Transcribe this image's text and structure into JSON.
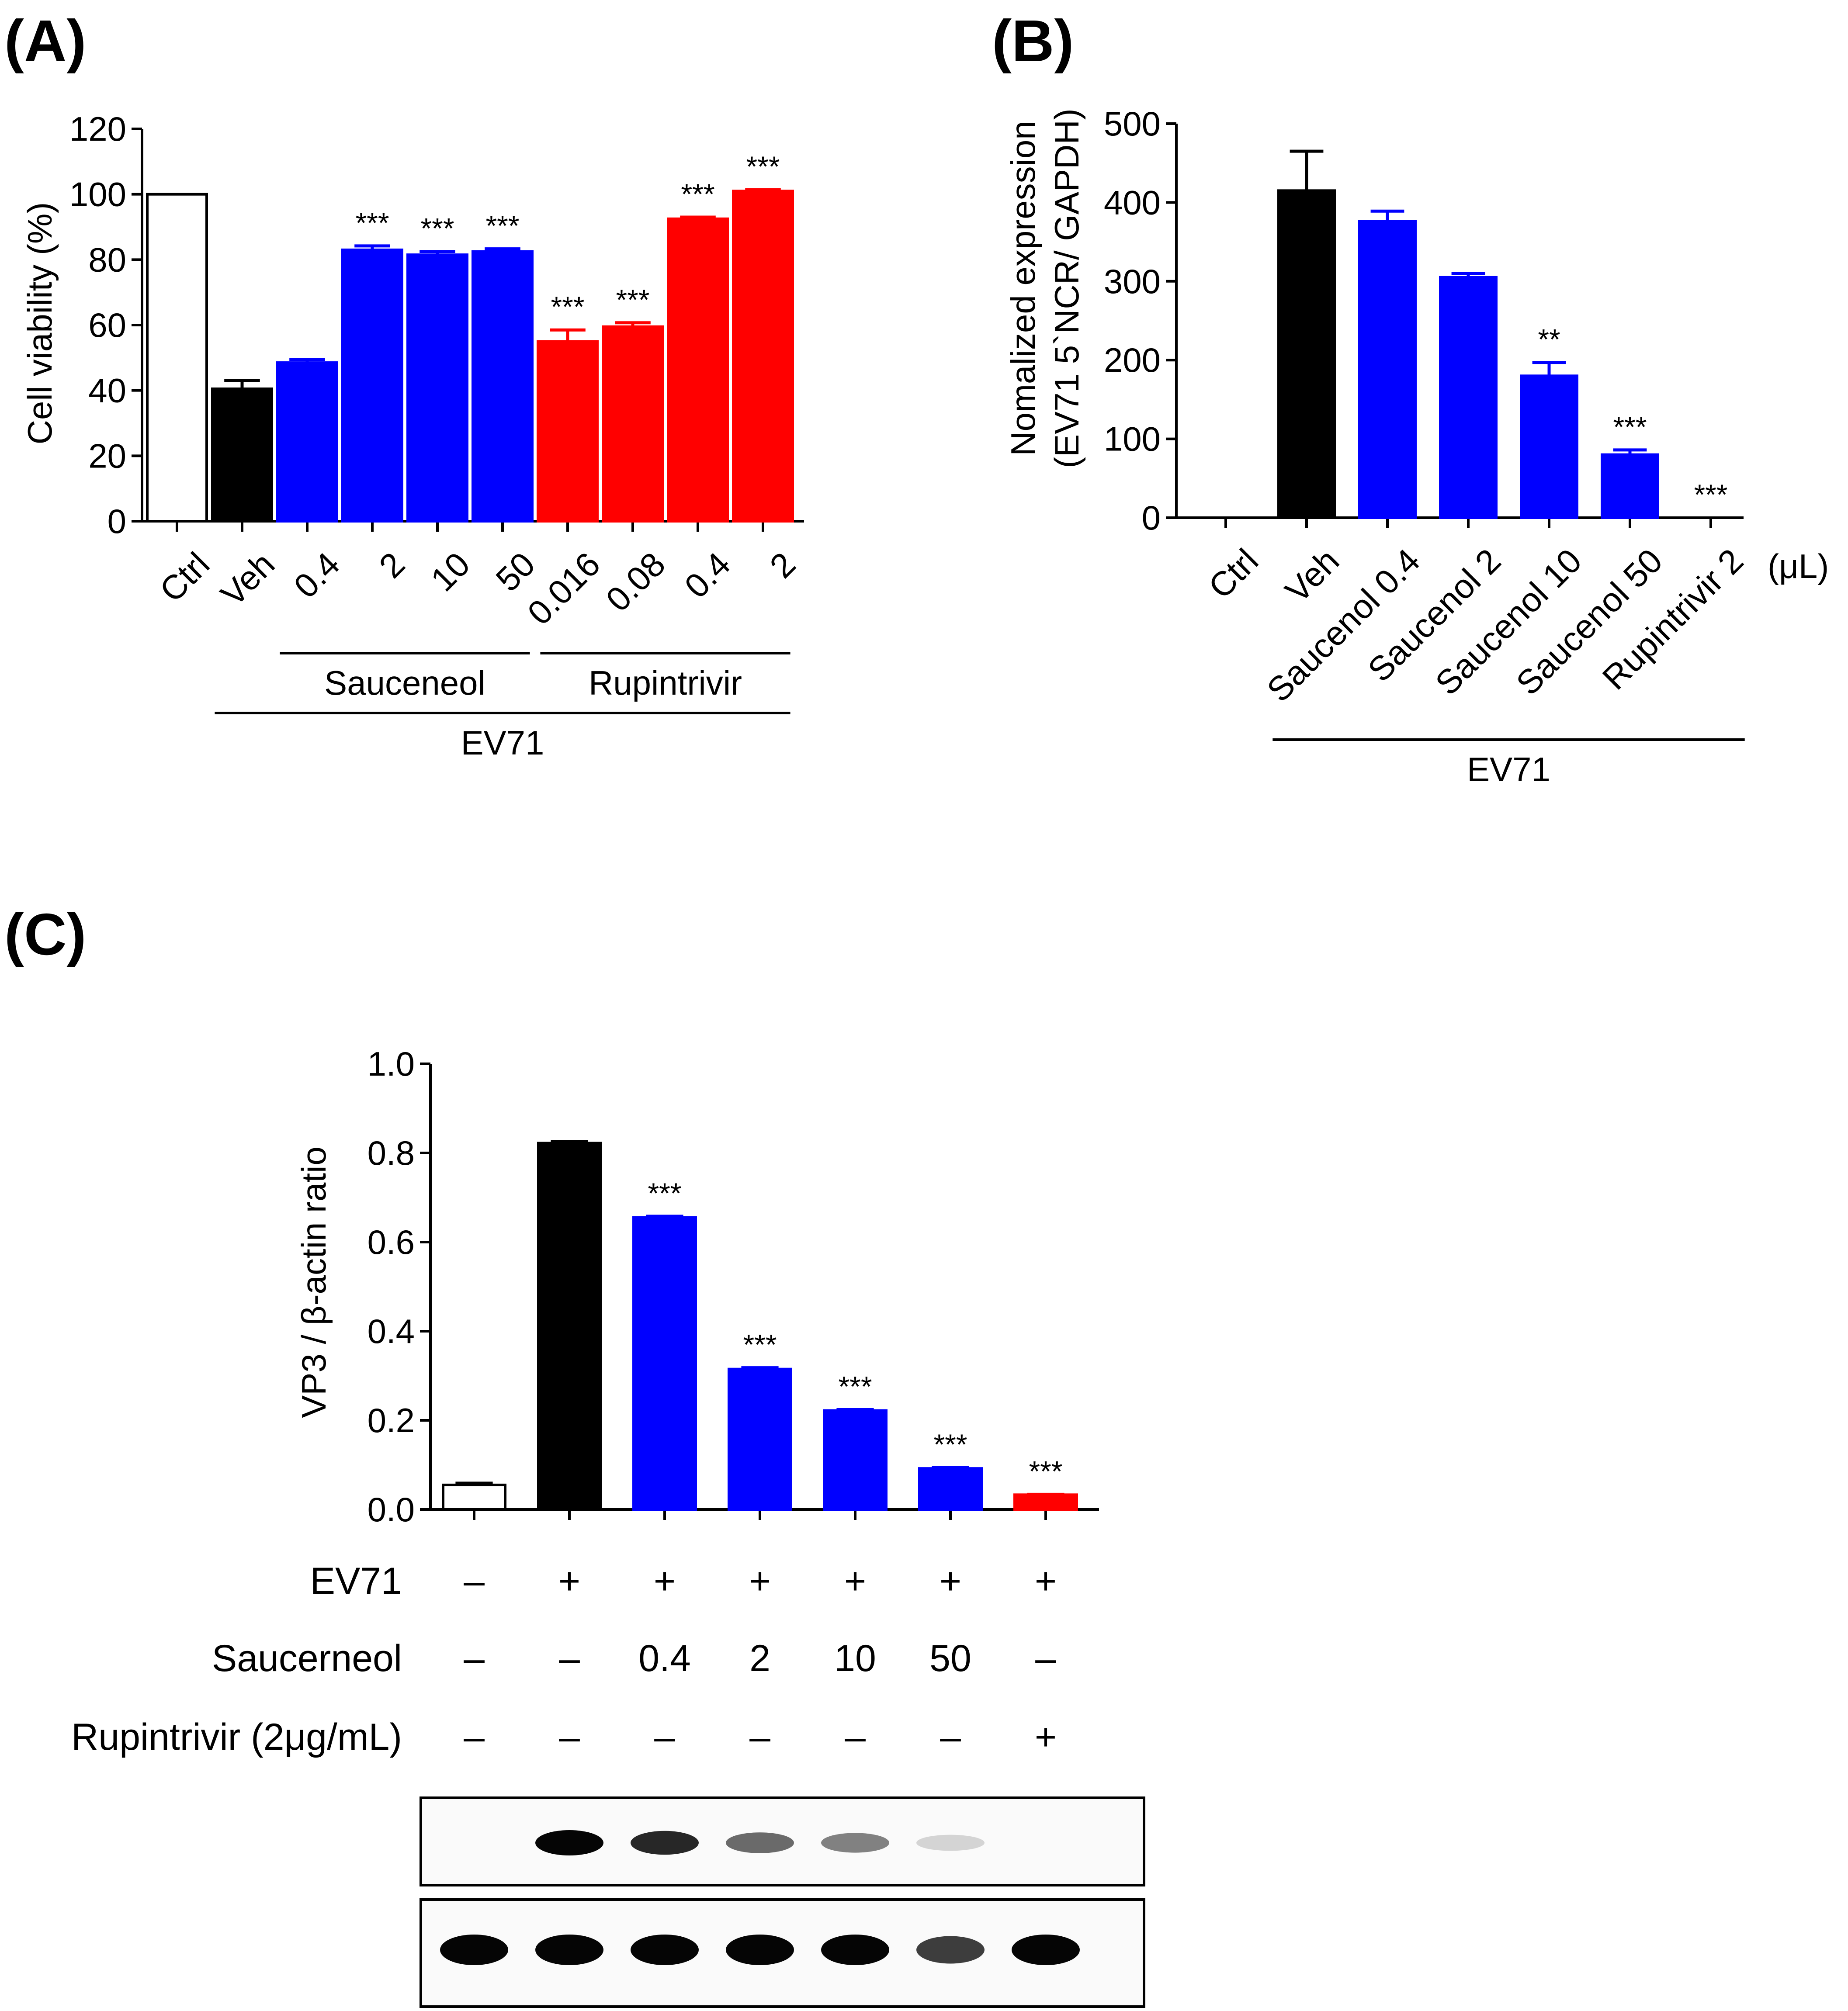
{
  "panels": [
    "(A)",
    "(B)",
    "(C)"
  ],
  "colors": {
    "ctrl": "#ffffff",
    "veh": "#000000",
    "sauceneol": "#0000ff",
    "rupintrivir": "#ff0000"
  },
  "chart_data": [
    {
      "type": "bar",
      "title": "(A)",
      "ylabel": "Cell viability (%)",
      "ylim": [
        0,
        120
      ],
      "yticks": [
        0,
        20,
        40,
        60,
        80,
        100,
        120
      ],
      "categories": [
        "Ctrl",
        "Veh",
        "0.4",
        "2",
        "10",
        "50",
        "0.016",
        "0.08",
        "0.4",
        "2"
      ],
      "values": [
        100,
        40.5,
        48.5,
        83,
        81.5,
        82.5,
        55,
        59.5,
        92.5,
        101
      ],
      "errors": [
        0,
        2.5,
        1,
        1.2,
        1,
        0.8,
        3.5,
        1.2,
        0.5,
        0.4
      ],
      "colors": [
        "#ffffff",
        "#000000",
        "#0000ff",
        "#0000ff",
        "#0000ff",
        "#0000ff",
        "#ff0000",
        "#ff0000",
        "#ff0000",
        "#ff0000"
      ],
      "significance": [
        "",
        "",
        "",
        "***",
        "***",
        "***",
        "***",
        "***",
        "***",
        "***"
      ],
      "groups": [
        {
          "label": "Sauceneol",
          "start": 2,
          "end": 5
        },
        {
          "label": "Rupintrivir",
          "start": 6,
          "end": 9
        },
        {
          "label": "EV71",
          "start": 1,
          "end": 9
        }
      ]
    },
    {
      "type": "bar",
      "title": "(B)",
      "ylabel_lines": [
        "Nomalized expression",
        "(EV71 5`NCR/ GAPDH)"
      ],
      "ylim": [
        0,
        500
      ],
      "yticks": [
        0,
        100,
        200,
        300,
        400,
        500
      ],
      "categories": [
        "Ctrl",
        "Veh",
        "Saucenol 0.4",
        "Saucenol 2",
        "Saucenol 10",
        "Saucenol 50",
        "Rupintrivir 2"
      ],
      "unit_label": "(μL)",
      "values": [
        0,
        415,
        376,
        305,
        180,
        80,
        0
      ],
      "errors": [
        0,
        50,
        13,
        5,
        17,
        6,
        0
      ],
      "colors": [
        "#ffffff",
        "#000000",
        "#0000ff",
        "#0000ff",
        "#0000ff",
        "#0000ff",
        "#ff0000"
      ],
      "significance": [
        "",
        "",
        "",
        "",
        "**",
        "***",
        "***"
      ],
      "groups": [
        {
          "label": "EV71",
          "start": 1,
          "end": 6
        }
      ]
    },
    {
      "type": "bar",
      "title": "(C)",
      "ylabel": "VP3 / β-actin ratio",
      "ylim": [
        0,
        1.0
      ],
      "yticks": [
        "0.0",
        "0.2",
        "0.4",
        "0.6",
        "0.8",
        "1.0"
      ],
      "values": [
        0.055,
        0.822,
        0.655,
        0.315,
        0.222,
        0.092,
        0.033
      ],
      "errors": [
        0.004,
        0.003,
        0.003,
        0.003,
        0.002,
        0.002,
        0.001
      ],
      "colors": [
        "#ffffff",
        "#000000",
        "#0000ff",
        "#0000ff",
        "#0000ff",
        "#0000ff",
        "#ff0000"
      ],
      "significance": [
        "",
        "",
        "***",
        "***",
        "***",
        "***",
        "***"
      ],
      "conditions": [
        {
          "label": "EV71",
          "values": [
            "–",
            "+",
            "+",
            "+",
            "+",
            "+",
            "+"
          ]
        },
        {
          "label": "Saucerneol",
          "values": [
            "–",
            "–",
            "0.4",
            "2",
            "10",
            "50",
            "–"
          ]
        },
        {
          "label": "Rupintrivir (2μg/mL)",
          "values": [
            "–",
            "–",
            "–",
            "–",
            "–",
            "–",
            "+"
          ]
        }
      ],
      "blot_top_intensity": [
        0,
        1.0,
        0.85,
        0.55,
        0.45,
        0.08,
        0
      ],
      "blot_bottom_intensity": [
        1.0,
        1.0,
        1.0,
        1.0,
        1.0,
        0.75,
        1.0
      ]
    }
  ]
}
